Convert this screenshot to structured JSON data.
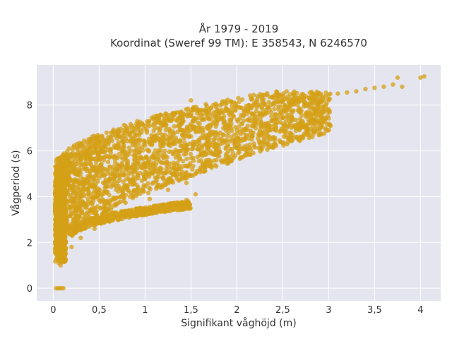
{
  "chart_data": {
    "type": "scatter",
    "title": [
      "År 1979 - 2019",
      "Koordinat (Sweref 99 TM): E 358543, N 6246570"
    ],
    "xlabel": "Signifikant våghöjd (m)",
    "ylabel": "Vågperiod (s)",
    "xlim": [
      -0.18,
      4.22
    ],
    "ylim": [
      -0.55,
      9.75
    ],
    "xticks": [
      0,
      0.5,
      1,
      1.5,
      2,
      2.5,
      3,
      3.5,
      4
    ],
    "xtick_labels": [
      "0",
      "0,5",
      "1",
      "1,5",
      "2",
      "2,5",
      "3",
      "3,5",
      "4"
    ],
    "yticks": [
      0,
      2,
      4,
      6,
      8
    ],
    "ytick_labels": [
      "0",
      "2",
      "4",
      "6",
      "8"
    ],
    "grid": true,
    "legend": "none",
    "marker_color": "#d4a017",
    "background": "#e5e5ef",
    "series": [
      {
        "values_description_note": "",
        "x": [
          0.03,
          0.05,
          0.07,
          0.09,
          0.11,
          0.04,
          0.06,
          0.05,
          0.08,
          0.1,
          0.12,
          0.15,
          0.18,
          0.2,
          0.25,
          0.3,
          0.35,
          0.4,
          0.45,
          0.5,
          0.55,
          0.6,
          0.7,
          0.8,
          0.9,
          1.0,
          1.1,
          1.2,
          1.3,
          1.4,
          1.5,
          1.6,
          1.7,
          1.8,
          1.9,
          2.0,
          2.1,
          2.2,
          2.3,
          2.4,
          2.5,
          2.6,
          2.7,
          2.8,
          2.9,
          3.0,
          3.1,
          3.2,
          3.3,
          3.4,
          3.5,
          3.6,
          3.7,
          3.75,
          3.8,
          4.0,
          4.04,
          0.25,
          0.45,
          0.6,
          0.8,
          1.0,
          1.2,
          1.35,
          1.45,
          1.55,
          0.2,
          0.3,
          0.45,
          0.65,
          0.85,
          1.05,
          1.25,
          1.45,
          1.5,
          0.05,
          0.07,
          0.1,
          0.06,
          0.08
        ],
        "y": [
          0.0,
          0.0,
          0.0,
          0.0,
          0.0,
          1.3,
          1.2,
          1.5,
          2.0,
          2.6,
          3.2,
          3.8,
          4.3,
          4.7,
          5.2,
          5.6,
          5.9,
          6.1,
          6.3,
          6.4,
          6.5,
          6.6,
          6.8,
          6.9,
          7.0,
          7.1,
          7.2,
          7.3,
          7.4,
          7.5,
          7.55,
          7.6,
          7.7,
          7.75,
          7.8,
          7.9,
          7.95,
          8.0,
          8.05,
          8.1,
          8.15,
          8.2,
          8.3,
          8.35,
          8.4,
          8.45,
          8.5,
          8.55,
          8.6,
          8.7,
          8.75,
          8.8,
          8.9,
          9.2,
          8.8,
          9.2,
          9.25,
          2.6,
          2.9,
          3.05,
          3.25,
          3.45,
          3.6,
          3.75,
          3.85,
          4.1,
          1.8,
          2.2,
          2.6,
          3.0,
          3.4,
          3.9,
          4.3,
          4.6,
          8.2,
          5.4,
          4.5,
          3.0,
          1.1,
          1.0
        ]
      }
    ]
  }
}
